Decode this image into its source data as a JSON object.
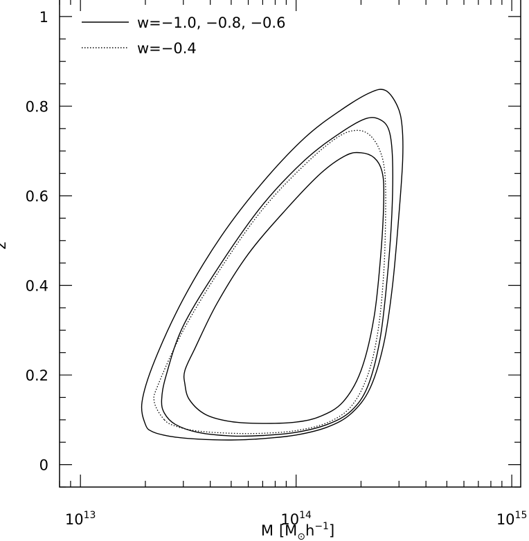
{
  "chart_data": {
    "type": "line",
    "title": "",
    "xlabel": {
      "prefix": "M",
      "open": "[",
      "msub": "M",
      "sun": "⊙",
      "h": "h",
      "exp": "−1",
      "close": "]"
    },
    "ylabel": "z",
    "xscale": "log",
    "xlim": [
      8000000000000.0,
      1100000000000000.0
    ],
    "ylim": [
      -0.05,
      1.04
    ],
    "x_ticks": [
      {
        "value": 10000000000000.0,
        "base": "10",
        "exp": "13"
      },
      {
        "value": 100000000000000.0,
        "base": "10",
        "exp": "14"
      },
      {
        "value": 1000000000000000.0,
        "base": "10",
        "exp": "15"
      }
    ],
    "y_ticks": [
      {
        "value": 0,
        "label": "0"
      },
      {
        "value": 0.2,
        "label": "0.2"
      },
      {
        "value": 0.4,
        "label": "0.4"
      },
      {
        "value": 0.6,
        "label": "0.6"
      },
      {
        "value": 0.8,
        "label": "0.8"
      },
      {
        "value": 1.0,
        "label": "1"
      }
    ],
    "legend": {
      "placement": "top-left",
      "entries": [
        {
          "label": "w=−1.0,  −0.8,  −0.6",
          "style": "solid"
        },
        {
          "label": "w=−0.4",
          "style": "dotted"
        }
      ]
    },
    "series": [
      {
        "style": "solid",
        "points": [
          [
            20000000000000.0,
            0.09
          ],
          [
            21700000000000.0,
            0.073
          ],
          [
            27000000000000.0,
            0.062
          ],
          [
            35000000000000.0,
            0.057
          ],
          [
            50000000000000.0,
            0.055
          ],
          [
            70000000000000.0,
            0.058
          ],
          [
            100000000000000.0,
            0.066
          ],
          [
            140000000000000.0,
            0.084
          ],
          [
            180000000000000.0,
            0.114
          ],
          [
            220000000000000.0,
            0.17
          ],
          [
            255000000000000.0,
            0.27
          ],
          [
            280000000000000.0,
            0.4
          ],
          [
            300000000000000.0,
            0.56
          ],
          [
            312000000000000.0,
            0.68
          ],
          [
            310000000000000.0,
            0.755
          ],
          [
            295000000000000.0,
            0.8
          ],
          [
            260000000000000.0,
            0.835
          ],
          [
            220000000000000.0,
            0.83
          ],
          [
            160000000000000.0,
            0.79
          ],
          [
            110000000000000.0,
            0.73
          ],
          [
            70000000000000.0,
            0.63
          ],
          [
            45000000000000.0,
            0.51
          ],
          [
            30000000000000.0,
            0.37
          ],
          [
            22000000000000.0,
            0.23
          ],
          [
            19300000000000.0,
            0.14
          ],
          [
            20000000000000.0,
            0.09
          ]
        ]
      },
      {
        "style": "solid",
        "points": [
          [
            24500000000000.0,
            0.115
          ],
          [
            27500000000000.0,
            0.09
          ],
          [
            35000000000000.0,
            0.072
          ],
          [
            50000000000000.0,
            0.064
          ],
          [
            70000000000000.0,
            0.065
          ],
          [
            100000000000000.0,
            0.072
          ],
          [
            140000000000000.0,
            0.09
          ],
          [
            180000000000000.0,
            0.12
          ],
          [
            215000000000000.0,
            0.175
          ],
          [
            245000000000000.0,
            0.28
          ],
          [
            265000000000000.0,
            0.42
          ],
          [
            278000000000000.0,
            0.56
          ],
          [
            280000000000000.0,
            0.68
          ],
          [
            270000000000000.0,
            0.745
          ],
          [
            245000000000000.0,
            0.77
          ],
          [
            210000000000000.0,
            0.772
          ],
          [
            160000000000000.0,
            0.74
          ],
          [
            110000000000000.0,
            0.68
          ],
          [
            70000000000000.0,
            0.58
          ],
          [
            45000000000000.0,
            0.45
          ],
          [
            30000000000000.0,
            0.31
          ],
          [
            25000000000000.0,
            0.2
          ],
          [
            23800000000000.0,
            0.145
          ],
          [
            24500000000000.0,
            0.115
          ]
        ]
      },
      {
        "style": "solid",
        "points": [
          [
            30500000000000.0,
            0.18
          ],
          [
            32000000000000.0,
            0.145
          ],
          [
            38000000000000.0,
            0.112
          ],
          [
            50000000000000.0,
            0.096
          ],
          [
            70000000000000.0,
            0.092
          ],
          [
            100000000000000.0,
            0.095
          ],
          [
            130000000000000.0,
            0.108
          ],
          [
            165000000000000.0,
            0.14
          ],
          [
            200000000000000.0,
            0.21
          ],
          [
            230000000000000.0,
            0.33
          ],
          [
            248000000000000.0,
            0.48
          ],
          [
            255000000000000.0,
            0.6
          ],
          [
            250000000000000.0,
            0.655
          ],
          [
            230000000000000.0,
            0.685
          ],
          [
            200000000000000.0,
            0.696
          ],
          [
            170000000000000.0,
            0.69
          ],
          [
            130000000000000.0,
            0.65
          ],
          [
            90000000000000.0,
            0.57
          ],
          [
            60000000000000.0,
            0.47
          ],
          [
            43000000000000.0,
            0.36
          ],
          [
            34000000000000.0,
            0.26
          ],
          [
            30500000000000.0,
            0.21
          ],
          [
            30500000000000.0,
            0.18
          ]
        ]
      },
      {
        "style": "dotted",
        "points": [
          [
            24500000000000.0,
            0.1
          ],
          [
            28000000000000.0,
            0.085
          ],
          [
            35000000000000.0,
            0.075
          ],
          [
            50000000000000.0,
            0.07
          ],
          [
            70000000000000.0,
            0.07
          ],
          [
            100000000000000.0,
            0.076
          ],
          [
            140000000000000.0,
            0.094
          ],
          [
            180000000000000.0,
            0.13
          ],
          [
            215000000000000.0,
            0.2
          ],
          [
            240000000000000.0,
            0.3
          ],
          [
            255000000000000.0,
            0.43
          ],
          [
            260000000000000.0,
            0.56
          ],
          [
            258000000000000.0,
            0.65
          ],
          [
            245000000000000.0,
            0.7
          ],
          [
            220000000000000.0,
            0.735
          ],
          [
            190000000000000.0,
            0.746
          ],
          [
            155000000000000.0,
            0.73
          ],
          [
            110000000000000.0,
            0.67
          ],
          [
            70000000000000.0,
            0.57
          ],
          [
            45000000000000.0,
            0.44
          ],
          [
            30000000000000.0,
            0.3
          ],
          [
            23000000000000.0,
            0.18
          ],
          [
            22000000000000.0,
            0.14
          ],
          [
            24500000000000.0,
            0.1
          ]
        ]
      }
    ]
  }
}
